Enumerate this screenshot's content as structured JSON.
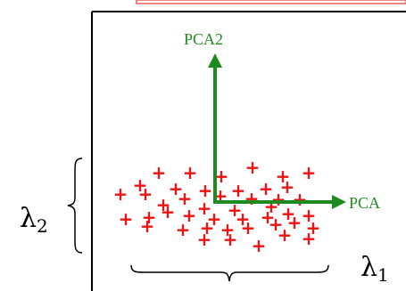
{
  "diagram": {
    "axis_primary_label": "PCA2",
    "axis_secondary_label": "PCA",
    "lambda_horizontal": {
      "symbol": "λ",
      "subscript": "1"
    },
    "lambda_vertical": {
      "symbol": "λ",
      "subscript": "2"
    },
    "point_symbol": "+"
  },
  "colors": {
    "axis": "#1e8b1e",
    "points": "#ee1111",
    "frame": "#000000",
    "top_bar_border": "#e85a5a"
  }
}
